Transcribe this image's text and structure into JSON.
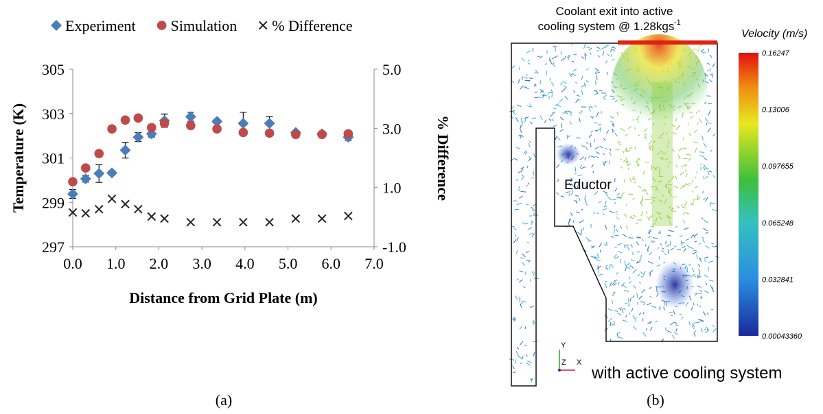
{
  "chart_data": {
    "type": "scatter",
    "x": [
      0,
      0.3,
      0.61,
      0.91,
      1.22,
      1.52,
      1.83,
      2.13,
      2.74,
      3.35,
      3.96,
      4.57,
      5.18,
      5.79,
      6.4
    ],
    "series": [
      {
        "name": "Experiment",
        "color": "#4a7ebb",
        "marker": "diamond",
        "values": [
          299.38,
          300.06,
          300.3,
          300.33,
          301.35,
          301.94,
          302.09,
          302.68,
          302.86,
          302.65,
          302.56,
          302.56,
          302.15,
          302.09,
          301.94
        ],
        "errors": [
          0.2,
          0.15,
          0.4,
          0.1,
          0.35,
          0.2,
          0.15,
          0.3,
          0.2,
          0.1,
          0.5,
          0.3,
          0.05,
          0.1,
          0.15
        ]
      },
      {
        "name": "Simulation",
        "color": "#be4b48",
        "marker": "circle",
        "values": [
          299.93,
          300.55,
          301.2,
          302.31,
          302.71,
          302.8,
          302.37,
          302.56,
          302.46,
          302.31,
          302.15,
          302.12,
          302.06,
          302.06,
          302.09
        ]
      },
      {
        "name": "% Difference",
        "color": "#222222",
        "marker": "x",
        "axis": "y2",
        "values": [
          0.16,
          0.13,
          0.27,
          0.62,
          0.44,
          0.27,
          0.02,
          -0.05,
          -0.17,
          -0.17,
          -0.17,
          -0.17,
          -0.05,
          -0.05,
          0.04
        ]
      }
    ],
    "xlabel": "Distance from Grid Plate (m)",
    "ylabel": "Temperature (K)",
    "y2label": "% Difference",
    "xlim": [
      0,
      7
    ],
    "xticks": [
      {
        "value": 0,
        "label": "0.0"
      },
      {
        "value": 1,
        "label": "1.0"
      },
      {
        "value": 2,
        "label": "2.0"
      },
      {
        "value": 3,
        "label": "3.0"
      },
      {
        "value": 4,
        "label": "4.0"
      },
      {
        "value": 5,
        "label": "5.0"
      },
      {
        "value": 6,
        "label": "6.0"
      },
      {
        "value": 7,
        "label": "7.0"
      }
    ],
    "ylim": [
      297,
      305
    ],
    "yticks": [
      297,
      299,
      301,
      303,
      305
    ],
    "y2lim": [
      -1,
      5
    ],
    "y2ticks": [
      {
        "value": -1,
        "label": "-1.0"
      },
      {
        "value": 1,
        "label": "1.0"
      },
      {
        "value": 3,
        "label": "3.0"
      },
      {
        "value": 5,
        "label": "5.0"
      }
    ],
    "legend": "top",
    "caption": "(a)"
  },
  "panel_b": {
    "title_lines": [
      "Coolant exit into active",
      "cooling system @ 1.28kgs"
    ],
    "title_superscript": "-1",
    "colorbar_title": "Velocity (m/s)",
    "colorbar_labels": [
      "0.16247",
      "0.13006",
      "0.097655",
      "0.065248",
      "0.032841",
      "0.00043360"
    ],
    "eductor_label": "Eductor",
    "note": "with active cooling system",
    "axes": [
      "Y",
      "Z",
      "X"
    ],
    "caption": "(b)"
  }
}
